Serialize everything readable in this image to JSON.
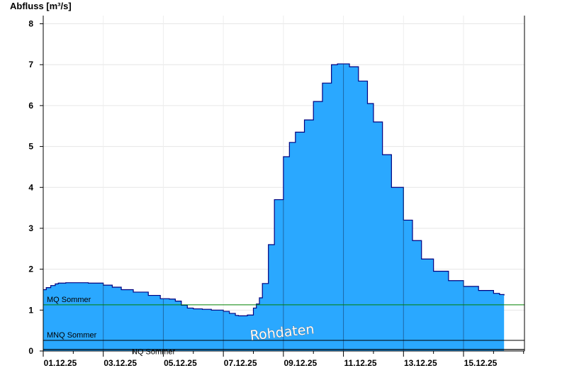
{
  "chart_data": {
    "type": "area",
    "ylabel": "Abfluss [m³/s]",
    "xlabel": "",
    "ylim": [
      0,
      8.2
    ],
    "xlim": [
      0,
      16
    ],
    "yticks": [
      0,
      1,
      2,
      3,
      4,
      5,
      6,
      7,
      8
    ],
    "x_tick_positions": [
      0,
      2,
      4,
      6,
      8,
      10,
      12,
      14
    ],
    "x_tick_labels": [
      "01.12.25",
      "03.12.25",
      "05.12.25",
      "07.12.25",
      "09.12.25",
      "11.12.25",
      "13.12.25",
      "15.12.25"
    ],
    "grid": true,
    "fill_color": "#2aa8ff",
    "line_color": "#00007f",
    "series": [
      {
        "x": [
          0,
          0.1,
          0.25,
          0.4,
          0.5,
          0.75,
          1.0,
          1.5,
          2.0,
          2.3,
          2.6,
          3.0,
          3.5,
          3.9,
          4.2,
          4.4,
          4.6,
          4.8,
          5.0,
          5.3,
          5.6,
          6.0,
          6.2,
          6.4,
          6.5,
          6.6,
          6.8,
          7.0,
          7.1,
          7.2,
          7.3,
          7.5,
          7.7,
          8.0,
          8.2,
          8.4,
          8.7,
          9.0,
          9.3,
          9.6,
          9.8,
          10.0,
          10.2,
          10.5,
          10.8,
          11.0,
          11.3,
          11.6,
          12.0,
          12.3,
          12.6,
          13.0,
          13.5,
          14.0,
          14.5,
          15.0,
          15.2,
          15.35
        ],
        "y": [
          1.5,
          1.55,
          1.6,
          1.64,
          1.66,
          1.67,
          1.67,
          1.66,
          1.61,
          1.56,
          1.5,
          1.44,
          1.36,
          1.28,
          1.27,
          1.22,
          1.12,
          1.05,
          1.03,
          1.02,
          1.0,
          0.97,
          0.92,
          0.87,
          0.86,
          0.86,
          0.88,
          1.05,
          1.15,
          1.3,
          1.65,
          2.6,
          3.7,
          4.75,
          5.1,
          5.35,
          5.65,
          6.1,
          6.55,
          7.0,
          7.02,
          7.02,
          6.95,
          6.6,
          6.05,
          5.6,
          4.8,
          4.0,
          3.2,
          2.7,
          2.25,
          1.95,
          1.72,
          1.58,
          1.48,
          1.41,
          1.38,
          1.36
        ]
      }
    ],
    "reference_lines": [
      {
        "label": "MQ Sommer",
        "value": 1.13,
        "color": "#008000"
      },
      {
        "label": "MNQ Sommer",
        "value": 0.26,
        "color": "#000000"
      },
      {
        "label": "NQ Sommer",
        "value": 0.04,
        "color": "#000000"
      }
    ],
    "watermark": "Rohdaten"
  }
}
